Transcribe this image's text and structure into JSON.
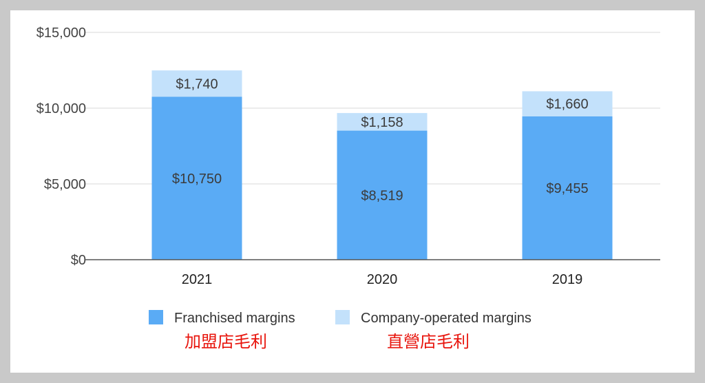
{
  "chart_data": {
    "type": "bar",
    "stacked": true,
    "categories": [
      "2021",
      "2020",
      "2019"
    ],
    "series": [
      {
        "name": "Franchised margins",
        "values": [
          10750,
          8519,
          9455
        ],
        "labels": [
          "$10,750",
          "$8,519",
          "$9,455"
        ],
        "color": "#5aabf5"
      },
      {
        "name": "Company-operated margins",
        "values": [
          1740,
          1158,
          1660
        ],
        "labels": [
          "$1,740",
          "$1,158",
          "$1,660"
        ],
        "color": "#c3e1fb"
      }
    ],
    "ylim": [
      0,
      15000
    ],
    "yticks": [
      0,
      5000,
      10000,
      15000
    ],
    "ytick_labels": [
      "$0",
      "$5,000",
      "$10,000",
      "$15,000"
    ],
    "grid": true,
    "legend_position": "bottom",
    "annotations": [
      "加盟店毛利",
      "直營店毛利"
    ]
  }
}
